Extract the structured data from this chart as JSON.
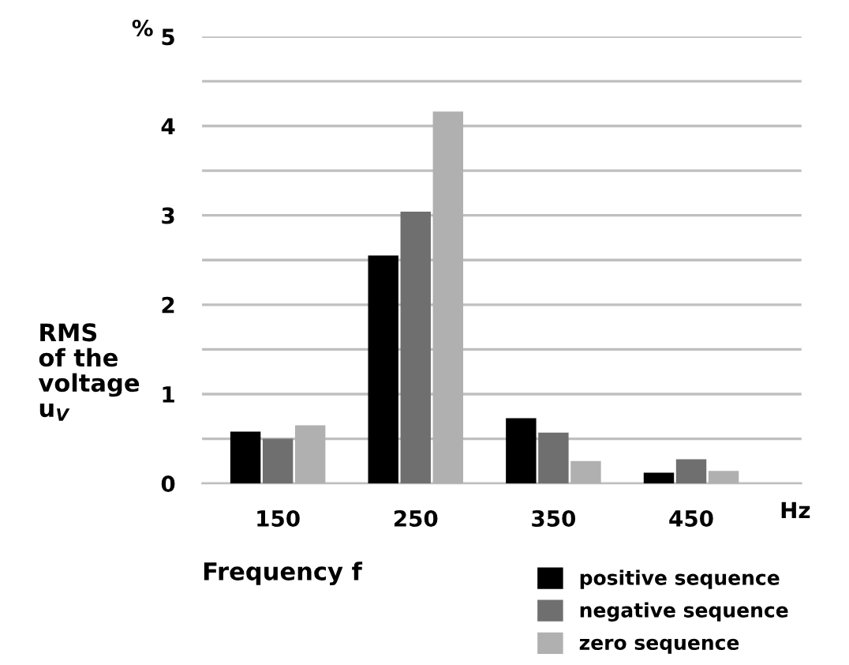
{
  "chart_data": {
    "type": "bar",
    "categories": [
      "150",
      "250",
      "350",
      "450"
    ],
    "series": [
      {
        "name": "positive sequence",
        "color": "#000000",
        "values": [
          0.58,
          2.55,
          0.73,
          0.12
        ]
      },
      {
        "name": "negative sequence",
        "color": "#6f6f6f",
        "values": [
          0.5,
          3.04,
          0.57,
          0.27
        ]
      },
      {
        "name": "zero sequence",
        "color": "#b0b0b0",
        "values": [
          0.65,
          4.16,
          0.25,
          0.14
        ]
      }
    ],
    "xlabel": "Frequency f",
    "ylabel": "RMS\nof the\nvoltage\nu$_{V}$",
    "annotations": [
      "%",
      "Hz"
    ],
    "ylim": [
      0,
      5
    ],
    "yticks": [
      0,
      {
        "value": 0.5,
        "label": null
      },
      1,
      {
        "value": 1.5,
        "label": null
      },
      2,
      {
        "value": 2.5,
        "label": null
      },
      3,
      {
        "value": 3.5,
        "label": null
      },
      4,
      {
        "value": 4.5,
        "label": null
      },
      5
    ],
    "grid": "y",
    "legend": "bottom right"
  }
}
